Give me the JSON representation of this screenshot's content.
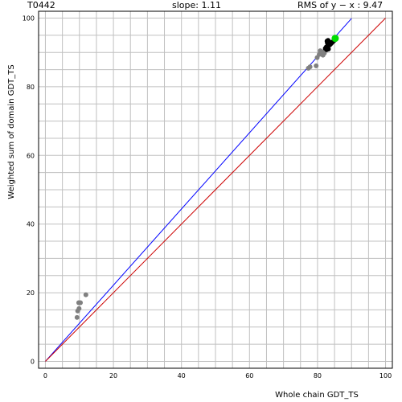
{
  "header": {
    "target_id": "T0442",
    "slope_text": "slope: 1.11",
    "rms_text": "RMS of  y − x : 9.47"
  },
  "chart_data": {
    "type": "scatter",
    "title": "",
    "xlabel": "Whole chain GDT_TS",
    "ylabel": "Weighted sum of domain GDT_TS",
    "xlim": [
      -2,
      102
    ],
    "ylim": [
      -2,
      102
    ],
    "x_ticks": [
      0,
      20,
      40,
      60,
      80,
      100
    ],
    "y_ticks": [
      0,
      20,
      40,
      60,
      80,
      100
    ],
    "grid": true,
    "grid_step": 5,
    "colors": {
      "grid": "#c0c0c0",
      "fit_line": "#0000ff",
      "diagonal": "#cc0000",
      "gray_points": "#808080",
      "black_points": "#000000",
      "highlight_point": "#00dd00"
    },
    "lines": [
      {
        "name": "fit",
        "color": "#0000ff",
        "x": [
          0,
          90
        ],
        "y": [
          0,
          99.9
        ]
      },
      {
        "name": "diagonal",
        "color": "#cc0000",
        "x": [
          0,
          100
        ],
        "y": [
          0,
          100
        ]
      }
    ],
    "series": [
      {
        "color": "#808080",
        "points": [
          [
            9.3,
            12.8
          ],
          [
            9.5,
            14.7
          ],
          [
            9.9,
            15.4
          ],
          [
            9.8,
            17.1
          ],
          [
            10.3,
            17.1
          ],
          [
            11.9,
            19.4
          ],
          [
            77.3,
            85.4
          ],
          [
            77.8,
            85.8
          ],
          [
            79.6,
            86.1
          ],
          [
            79.9,
            88.5
          ],
          [
            80.5,
            89.4
          ],
          [
            81.6,
            89.2
          ],
          [
            80.8,
            90.5
          ],
          [
            81.4,
            90.2
          ],
          [
            82.0,
            89.8
          ]
        ]
      },
      {
        "color": "#000000",
        "points": [
          [
            82.3,
            91.2
          ],
          [
            82.7,
            90.8
          ],
          [
            83.2,
            91.0
          ],
          [
            82.6,
            91.6
          ],
          [
            83.0,
            92.0
          ],
          [
            83.6,
            92.2
          ],
          [
            82.9,
            92.8
          ],
          [
            83.4,
            93.1
          ],
          [
            84.0,
            92.6
          ],
          [
            84.4,
            93.0
          ],
          [
            83.1,
            93.5
          ],
          [
            82.8,
            93.3
          ],
          [
            84.8,
            93.4
          ],
          [
            85.0,
            93.8
          ]
        ]
      },
      {
        "color": "#00dd00",
        "points": [
          [
            85.2,
            94.1
          ]
        ]
      }
    ]
  }
}
